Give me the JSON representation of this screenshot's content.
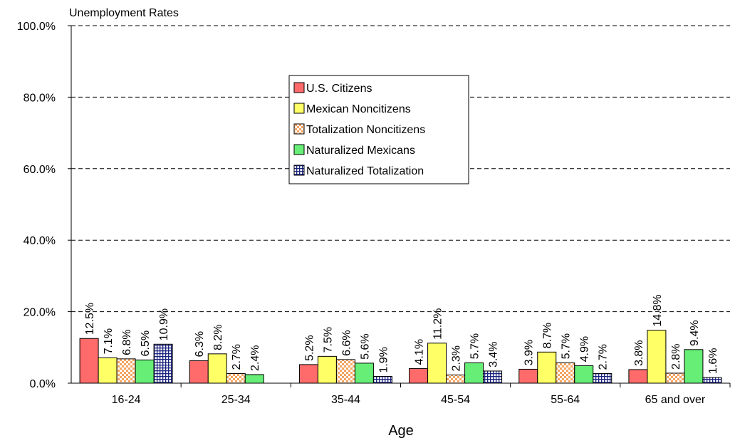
{
  "chart_data": {
    "type": "bar",
    "title": "Unemployment Rates",
    "xlabel": "Age",
    "ylabel": "",
    "ylim": [
      0,
      100
    ],
    "yticks": [
      "0.0%",
      "20.0%",
      "40.0%",
      "60.0%",
      "80.0%",
      "100.0%"
    ],
    "grid": true,
    "legend_position": "center",
    "categories": [
      "16-24",
      "25-34",
      "35-44",
      "45-54",
      "55-64",
      "65 and over"
    ],
    "series": [
      {
        "name": "U.S. Citizens",
        "color": "#FF6B6B",
        "pattern": "solid",
        "values": [
          12.5,
          6.3,
          5.2,
          4.1,
          3.9,
          3.8
        ],
        "labels": [
          "12.5%",
          "6.3%",
          "5.2%",
          "4.1%",
          "3.9%",
          "3.8%"
        ]
      },
      {
        "name": "Mexican Noncitizens",
        "color": "#FFFF66",
        "pattern": "solid",
        "values": [
          7.1,
          8.2,
          7.5,
          11.2,
          8.7,
          14.8
        ],
        "labels": [
          "7.1%",
          "8.2%",
          "7.5%",
          "11.2%",
          "8.7%",
          "14.8%"
        ]
      },
      {
        "name": "Totalization Noncitizens",
        "color": "#F4A460",
        "pattern": "checker",
        "values": [
          6.8,
          2.7,
          6.6,
          2.3,
          5.7,
          2.8
        ],
        "labels": [
          "6.8%",
          "2.7%",
          "6.6%",
          "2.3%",
          "5.7%",
          "2.8%"
        ]
      },
      {
        "name": "Naturalized Mexicans",
        "color": "#66EE77",
        "pattern": "solid",
        "values": [
          6.5,
          2.4,
          5.6,
          5.7,
          4.9,
          9.4
        ],
        "labels": [
          "6.5%",
          "2.4%",
          "5.6%",
          "5.7%",
          "4.9%",
          "9.4%"
        ]
      },
      {
        "name": "Naturalized Totalization",
        "color": "#1A237E",
        "pattern": "grid",
        "values": [
          10.9,
          null,
          1.9,
          3.4,
          2.7,
          1.6
        ],
        "labels": [
          "10.9%",
          null,
          "1.9%",
          "3.4%",
          "2.7%",
          "1.6%"
        ]
      }
    ]
  }
}
